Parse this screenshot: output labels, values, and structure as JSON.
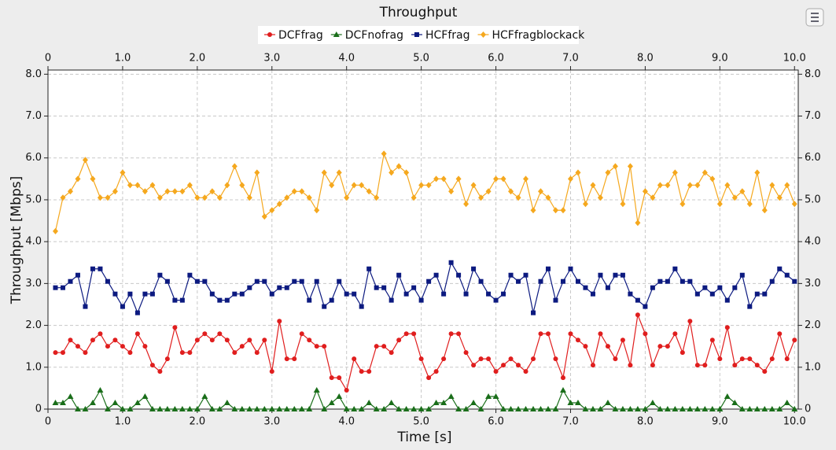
{
  "chart_data": {
    "type": "line",
    "title": "Throughput",
    "xlabel": "Time [s]",
    "ylabel": "Throughput [Mbps]",
    "xlim": [
      0,
      10.05
    ],
    "ylim": [
      0,
      8.1
    ],
    "xticks": [
      0,
      {
        "value": 1,
        "label": "1.0"
      },
      {
        "value": 2,
        "label": "2.0"
      },
      {
        "value": 3,
        "label": "3.0"
      },
      {
        "value": 4,
        "label": "4.0"
      },
      {
        "value": 5,
        "label": "5.0"
      },
      {
        "value": 6,
        "label": "6.0"
      },
      {
        "value": 7,
        "label": "7.0"
      },
      {
        "value": 8,
        "label": "8.0"
      },
      {
        "value": 9,
        "label": "9.0"
      },
      {
        "value": 10,
        "label": "10.0"
      }
    ],
    "yticks": [
      0,
      {
        "value": 1,
        "label": "1.0"
      },
      {
        "value": 2,
        "label": "2.0"
      },
      {
        "value": 3,
        "label": "3.0"
      },
      {
        "value": 4,
        "label": "4.0"
      },
      {
        "value": 5,
        "label": "5.0"
      },
      {
        "value": 6,
        "label": "6.0"
      },
      {
        "value": 7,
        "label": "7.0"
      },
      {
        "value": 8,
        "label": "8.0"
      }
    ],
    "grid": true,
    "legend": "top",
    "x": [
      0.1,
      0.2,
      0.3,
      0.4,
      0.5,
      0.6,
      0.7,
      0.8,
      0.9,
      1.0,
      1.1,
      1.2,
      1.3,
      1.4,
      1.5,
      1.6,
      1.7,
      1.8,
      1.9,
      2.0,
      2.1,
      2.2,
      2.3,
      2.4,
      2.5,
      2.6,
      2.7,
      2.8,
      2.9,
      3.0,
      3.1,
      3.2,
      3.3,
      3.4,
      3.5,
      3.6,
      3.7,
      3.8,
      3.9,
      4.0,
      4.1,
      4.2,
      4.3,
      4.4,
      4.5,
      4.6,
      4.7,
      4.8,
      4.9,
      5.0,
      5.1,
      5.2,
      5.3,
      5.4,
      5.5,
      5.6,
      5.7,
      5.8,
      5.9,
      6.0,
      6.1,
      6.2,
      6.3,
      6.4,
      6.5,
      6.6,
      6.7,
      6.8,
      6.9,
      7.0,
      7.1,
      7.2,
      7.3,
      7.4,
      7.5,
      7.6,
      7.7,
      7.8,
      7.9,
      8.0,
      8.1,
      8.2,
      8.3,
      8.4,
      8.5,
      8.6,
      8.7,
      8.8,
      8.9,
      9.0,
      9.1,
      9.2,
      9.3,
      9.4,
      9.5,
      9.6,
      9.7,
      9.8,
      9.9,
      10.0
    ],
    "series": [
      {
        "name": "DCFfrag",
        "color": "#e01e1e",
        "marker": "circle",
        "values": [
          1.35,
          1.35,
          1.65,
          1.5,
          1.35,
          1.65,
          1.8,
          1.5,
          1.65,
          1.5,
          1.35,
          1.8,
          1.5,
          1.05,
          0.9,
          1.2,
          1.95,
          1.35,
          1.35,
          1.65,
          1.8,
          1.65,
          1.8,
          1.65,
          1.35,
          1.5,
          1.65,
          1.35,
          1.65,
          0.9,
          2.1,
          1.2,
          1.2,
          1.8,
          1.65,
          1.5,
          1.5,
          0.75,
          0.75,
          0.45,
          1.2,
          0.9,
          0.9,
          1.5,
          1.5,
          1.35,
          1.65,
          1.8,
          1.8,
          1.2,
          0.75,
          0.9,
          1.2,
          1.8,
          1.8,
          1.35,
          1.05,
          1.2,
          1.2,
          0.9,
          1.05,
          1.2,
          1.05,
          0.9,
          1.2,
          1.8,
          1.8,
          1.2,
          0.75,
          1.8,
          1.65,
          1.5,
          1.05,
          1.8,
          1.5,
          1.2,
          1.65,
          1.05,
          2.25,
          1.8,
          1.05,
          1.5,
          1.5,
          1.8,
          1.35,
          2.1,
          1.05,
          1.05,
          1.65,
          1.2,
          1.95,
          1.05,
          1.2,
          1.2,
          1.05,
          0.9,
          1.2,
          1.8,
          1.2,
          1.65
        ]
      },
      {
        "name": "DCFnofrag",
        "color": "#1a6e1a",
        "marker": "triangle",
        "values": [
          0.15,
          0.15,
          0.3,
          0,
          0,
          0.15,
          0.45,
          0,
          0.15,
          0,
          0,
          0.15,
          0.3,
          0,
          0,
          0,
          0,
          0,
          0,
          0,
          0.3,
          0,
          0,
          0.15,
          0,
          0,
          0,
          0,
          0,
          0,
          0,
          0,
          0,
          0,
          0,
          0.45,
          0,
          0.15,
          0.3,
          0,
          0,
          0,
          0.15,
          0,
          0,
          0.15,
          0,
          0,
          0,
          0,
          0,
          0.15,
          0.15,
          0.3,
          0,
          0,
          0.15,
          0,
          0.3,
          0.3,
          0,
          0,
          0,
          0,
          0,
          0,
          0,
          0,
          0.45,
          0.15,
          0.15,
          0,
          0,
          0,
          0.15,
          0,
          0,
          0,
          0,
          0,
          0.15,
          0,
          0,
          0,
          0,
          0,
          0,
          0,
          0,
          0,
          0.3,
          0.15,
          0,
          0,
          0,
          0,
          0,
          0,
          0.15,
          0
        ]
      },
      {
        "name": "HCFfrag",
        "color": "#0c1a80",
        "marker": "square",
        "values": [
          2.9,
          2.9,
          3.05,
          3.2,
          2.45,
          3.35,
          3.35,
          3.05,
          2.75,
          2.45,
          2.75,
          2.3,
          2.75,
          2.75,
          3.2,
          3.05,
          2.6,
          2.6,
          3.2,
          3.05,
          3.05,
          2.75,
          2.6,
          2.6,
          2.75,
          2.75,
          2.9,
          3.05,
          3.05,
          2.75,
          2.9,
          2.9,
          3.05,
          3.05,
          2.6,
          3.05,
          2.45,
          2.6,
          3.05,
          2.75,
          2.75,
          2.45,
          3.35,
          2.9,
          2.9,
          2.6,
          3.2,
          2.75,
          2.9,
          2.6,
          3.05,
          3.2,
          2.75,
          3.5,
          3.2,
          2.75,
          3.35,
          3.05,
          2.75,
          2.6,
          2.75,
          3.2,
          3.05,
          3.2,
          2.3,
          3.05,
          3.35,
          2.6,
          3.05,
          3.35,
          3.05,
          2.9,
          2.75,
          3.2,
          2.9,
          3.2,
          3.2,
          2.75,
          2.6,
          2.45,
          2.9,
          3.05,
          3.05,
          3.35,
          3.05,
          3.05,
          2.75,
          2.9,
          2.75,
          2.9,
          2.6,
          2.9,
          3.2,
          2.45,
          2.75,
          2.75,
          3.05,
          3.35,
          3.2,
          3.05
        ]
      },
      {
        "name": "HCFfragblockack",
        "color": "#f5a81e",
        "marker": "diamond",
        "values": [
          4.25,
          5.05,
          5.2,
          5.5,
          5.95,
          5.5,
          5.05,
          5.05,
          5.2,
          5.65,
          5.35,
          5.35,
          5.2,
          5.35,
          5.05,
          5.2,
          5.2,
          5.2,
          5.35,
          5.05,
          5.05,
          5.2,
          5.05,
          5.35,
          5.8,
          5.35,
          5.05,
          5.65,
          4.6,
          4.75,
          4.9,
          5.05,
          5.2,
          5.2,
          5.05,
          4.75,
          5.65,
          5.35,
          5.65,
          5.05,
          5.35,
          5.35,
          5.2,
          5.05,
          6.1,
          5.65,
          5.8,
          5.65,
          5.05,
          5.35,
          5.35,
          5.5,
          5.5,
          5.2,
          5.5,
          4.9,
          5.35,
          5.05,
          5.2,
          5.5,
          5.5,
          5.2,
          5.05,
          5.5,
          4.75,
          5.2,
          5.05,
          4.75,
          4.75,
          5.5,
          5.65,
          4.9,
          5.35,
          5.05,
          5.65,
          5.8,
          4.9,
          5.8,
          4.45,
          5.2,
          5.05,
          5.35,
          5.35,
          5.65,
          4.9,
          5.35,
          5.35,
          5.65,
          5.5,
          4.9,
          5.35,
          5.05,
          5.2,
          4.9,
          5.65,
          4.75,
          5.35,
          5.05,
          5.35,
          4.9
        ]
      }
    ]
  }
}
